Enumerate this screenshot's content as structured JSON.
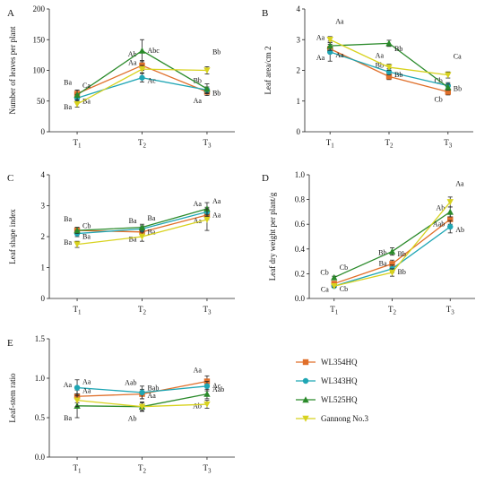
{
  "chart_data": [
    {
      "panel": "A",
      "type": "line",
      "categories": [
        "T1",
        "T2",
        "T3"
      ],
      "ylabel": "Number of leaves per plant",
      "ylim": [
        0,
        200
      ],
      "yticks": [
        0,
        50,
        100,
        150,
        200
      ],
      "series": [
        {
          "name": "WL354HQ",
          "color": "#e06f2a",
          "marker": "square",
          "values": [
            62,
            108,
            65
          ],
          "errors": [
            6,
            8,
            6
          ],
          "labels": [
            "Ba",
            "Ab",
            "Bb"
          ]
        },
        {
          "name": "WL343HQ",
          "color": "#1fa6b4",
          "marker": "circle",
          "values": [
            55,
            88,
            68
          ],
          "errors": [
            6,
            7,
            5
          ],
          "labels": [
            "Ba",
            "Ac",
            "Bb"
          ]
        },
        {
          "name": "WL525HQ",
          "color": "#2a8a2a",
          "marker": "triangle",
          "values": [
            60,
            132,
            70
          ],
          "errors": [
            8,
            18,
            8
          ],
          "labels": [
            "Ba",
            "Aa",
            "Aa"
          ]
        },
        {
          "name": "Gannong No.3",
          "color": "#d8d21e",
          "marker": "triangle-down",
          "values": [
            45,
            102,
            100
          ],
          "errors": [
            5,
            6,
            6
          ],
          "labels": [
            "Ca",
            "Abc",
            "Bb"
          ]
        }
      ]
    },
    {
      "panel": "B",
      "type": "line",
      "categories": [
        "T1",
        "T2",
        "T3"
      ],
      "ylabel": "Leaf area/cm 2",
      "ylim": [
        0,
        4
      ],
      "yticks": [
        0,
        1,
        2,
        3,
        4
      ],
      "series": [
        {
          "name": "WL354HQ",
          "color": "#e06f2a",
          "marker": "square",
          "values": [
            2.7,
            1.8,
            1.3
          ],
          "errors": [
            0.15,
            0.1,
            0.1
          ],
          "labels": [
            "Aa",
            "Bb",
            "Cb"
          ]
        },
        {
          "name": "WL343HQ",
          "color": "#1fa6b4",
          "marker": "circle",
          "values": [
            2.6,
            1.95,
            1.5
          ],
          "errors": [
            0.3,
            0.1,
            0.1
          ],
          "labels": [
            "Aa",
            "Bb",
            "Bb"
          ]
        },
        {
          "name": "WL525HQ",
          "color": "#2a8a2a",
          "marker": "triangle",
          "values": [
            2.8,
            2.88,
            1.45
          ],
          "errors": [
            0.15,
            0.1,
            0.1
          ],
          "labels": [
            "Aa",
            "Aa",
            "Cb"
          ]
        },
        {
          "name": "Gannong No.3",
          "color": "#d8d21e",
          "marker": "triangle-down",
          "values": [
            3.0,
            2.1,
            1.85
          ],
          "errors": [
            0.1,
            0.1,
            0.1
          ],
          "labels": [
            "Aa",
            "Bb",
            "Ca"
          ]
        }
      ]
    },
    {
      "panel": "C",
      "type": "line",
      "categories": [
        "T1",
        "T2",
        "T3"
      ],
      "ylabel": "Leaf shape index",
      "ylim": [
        0,
        4
      ],
      "yticks": [
        0,
        1,
        2,
        3,
        4
      ],
      "series": [
        {
          "name": "WL354HQ",
          "color": "#e06f2a",
          "marker": "square",
          "values": [
            2.2,
            2.15,
            2.7
          ],
          "errors": [
            0.1,
            0.1,
            0.15
          ],
          "labels": [
            "Ba",
            "Ba",
            "Aa"
          ]
        },
        {
          "name": "WL343HQ",
          "color": "#1fa6b4",
          "marker": "circle",
          "values": [
            2.1,
            2.25,
            2.8
          ],
          "errors": [
            0.1,
            0.1,
            0.15
          ],
          "labels": [
            "Ba",
            "Ba",
            "Aa"
          ]
        },
        {
          "name": "WL525HQ",
          "color": "#2a8a2a",
          "marker": "triangle",
          "values": [
            2.2,
            2.3,
            2.9
          ],
          "errors": [
            0.1,
            0.1,
            0.2
          ],
          "labels": [
            "Ba",
            "Ba",
            "Aa"
          ]
        },
        {
          "name": "Gannong No.3",
          "color": "#d8d21e",
          "marker": "triangle-down",
          "values": [
            1.75,
            2.0,
            2.55
          ],
          "errors": [
            0.1,
            0.15,
            0.35
          ],
          "labels": [
            "Cb",
            "Ba",
            "Aa"
          ]
        }
      ]
    },
    {
      "panel": "D",
      "type": "line",
      "categories": [
        "T1",
        "T2",
        "T3"
      ],
      "ylabel": "Leaf dry weight per plant/g",
      "ylim": [
        0,
        1.0
      ],
      "yticks": [
        0.0,
        0.2,
        0.4,
        0.6,
        0.8,
        1.0
      ],
      "series": [
        {
          "name": "WL354HQ",
          "color": "#e06f2a",
          "marker": "square",
          "values": [
            0.12,
            0.28,
            0.64
          ],
          "errors": [
            0.01,
            0.03,
            0.04
          ],
          "labels": [
            "Cb",
            "Bb",
            "Ab"
          ]
        },
        {
          "name": "WL343HQ",
          "color": "#1fa6b4",
          "marker": "circle",
          "values": [
            0.1,
            0.24,
            0.58
          ],
          "errors": [
            0.01,
            0.03,
            0.05
          ],
          "labels": [
            "Cb",
            "Bb",
            "Ab"
          ]
        },
        {
          "name": "WL525HQ",
          "color": "#2a8a2a",
          "marker": "triangle",
          "values": [
            0.17,
            0.38,
            0.7
          ],
          "errors": [
            0.01,
            0.03,
            0.04
          ],
          "labels": [
            "Ca",
            "Ba",
            "Aab"
          ]
        },
        {
          "name": "Gannong No.3",
          "color": "#d8d21e",
          "marker": "triangle-down",
          "values": [
            0.1,
            0.21,
            0.78
          ],
          "errors": [
            0.01,
            0.03,
            0.04
          ],
          "labels": [
            "Cb",
            "Bb",
            "Aa"
          ]
        }
      ]
    },
    {
      "panel": "E",
      "type": "line",
      "categories": [
        "T1",
        "T2",
        "T3"
      ],
      "ylabel": "Leaf-stem ratio",
      "ylim": [
        0,
        1.5
      ],
      "yticks": [
        0.0,
        0.5,
        1.0,
        1.5
      ],
      "series": [
        {
          "name": "WL354HQ",
          "color": "#e06f2a",
          "marker": "square",
          "values": [
            0.77,
            0.8,
            0.96
          ],
          "errors": [
            0.08,
            0.06,
            0.07
          ],
          "labels": [
            "Aa",
            "Aab",
            "Aa"
          ]
        },
        {
          "name": "WL343HQ",
          "color": "#1fa6b4",
          "marker": "circle",
          "values": [
            0.88,
            0.82,
            0.9
          ],
          "errors": [
            0.1,
            0.08,
            0.06
          ],
          "labels": [
            "Aa",
            "Aa",
            "Aab"
          ]
        },
        {
          "name": "WL525HQ",
          "color": "#2a8a2a",
          "marker": "triangle",
          "values": [
            0.65,
            0.64,
            0.8
          ],
          "errors": [
            0.15,
            0.06,
            0.06
          ],
          "labels": [
            "Ba",
            "Ab",
            "Ab"
          ]
        },
        {
          "name": "Gannong No.3",
          "color": "#d8d21e",
          "marker": "triangle-down",
          "values": [
            0.72,
            0.64,
            0.67
          ],
          "errors": [
            0.08,
            0.05,
            0.05
          ],
          "labels": [
            "Aa",
            "Bab",
            "Ac"
          ]
        }
      ]
    }
  ],
  "legend": [
    {
      "label": "WL354HQ",
      "color": "#e06f2a",
      "marker": "square"
    },
    {
      "label": "WL343HQ",
      "color": "#1fa6b4",
      "marker": "circle"
    },
    {
      "label": "WL525HQ",
      "color": "#2a8a2a",
      "marker": "triangle"
    },
    {
      "label": "Gannong No.3",
      "color": "#d8d21e",
      "marker": "triangle-down"
    }
  ]
}
